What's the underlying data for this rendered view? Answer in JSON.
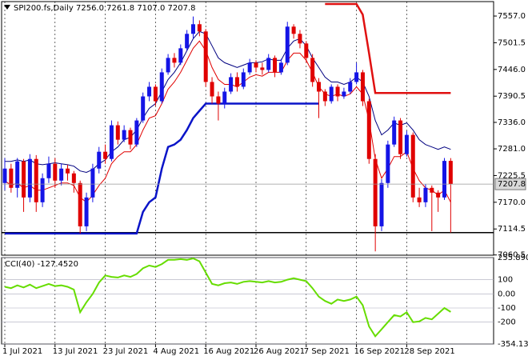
{
  "chart_data": {
    "type": "candlestick",
    "title": "SPI200.fs,Daily  7256.0 7261.8 7107.0 7207.8",
    "categories": [
      "1 Jul 2021",
      null,
      null,
      null,
      null,
      null,
      null,
      null,
      "13 Jul 2021",
      null,
      null,
      null,
      null,
      null,
      null,
      null,
      "23 Jul 2021",
      null,
      null,
      null,
      null,
      null,
      null,
      null,
      "4 Aug 2021",
      null,
      null,
      null,
      null,
      null,
      null,
      null,
      "16 Aug 2021",
      null,
      null,
      null,
      null,
      null,
      null,
      null,
      "26 Aug 2021",
      null,
      null,
      null,
      null,
      null,
      null,
      null,
      "7 Sep 2021",
      null,
      null,
      null,
      null,
      null,
      null,
      null,
      "16 Sep 2021",
      null,
      null,
      null,
      null,
      null,
      null,
      null,
      "28 Sep 2021",
      null,
      null,
      null,
      null,
      null,
      null,
      null
    ],
    "open": [
      7210,
      7240,
      7200,
      7255,
      7180,
      7260,
      7170,
      7220,
      7250,
      7215,
      7240,
      7230,
      7210,
      7120,
      7180,
      7240,
      7275,
      7260,
      7330,
      7300,
      7320,
      7290,
      7340,
      7390,
      7410,
      7380,
      7440,
      7470,
      7460,
      7490,
      7520,
      7540,
      7525,
      7420,
      7390,
      7375,
      7400,
      7430,
      7410,
      7440,
      7460,
      7450,
      7445,
      7470,
      7440,
      7460,
      7535,
      7520,
      7500,
      7470,
      7420,
      7400,
      7380,
      7410,
      7390,
      7400,
      7420,
      7440,
      7380,
      7260,
      7120,
      7210,
      7290,
      7340,
      7270,
      7310,
      7180,
      7170,
      7200,
      7190,
      7180,
      7256
    ],
    "high": [
      7262,
      7250,
      7262,
      7260,
      7270,
      7268,
      7230,
      7265,
      7262,
      7250,
      7248,
      7235,
      7215,
      7190,
      7250,
      7285,
      7290,
      7340,
      7338,
      7330,
      7325,
      7345,
      7398,
      7420,
      7415,
      7448,
      7478,
      7480,
      7498,
      7528,
      7556,
      7548,
      7530,
      7430,
      7400,
      7408,
      7438,
      7440,
      7448,
      7468,
      7465,
      7460,
      7478,
      7475,
      7468,
      7545,
      7540,
      7528,
      7505,
      7478,
      7428,
      7405,
      7415,
      7415,
      7408,
      7428,
      7460,
      7445,
      7385,
      7270,
      7218,
      7298,
      7348,
      7345,
      7318,
      7315,
      7200,
      7208,
      7205,
      7195,
      7262,
      7261.8
    ],
    "low": [
      7195,
      7190,
      7180,
      7150,
      7170,
      7150,
      7160,
      7210,
      7200,
      7205,
      7215,
      7190,
      7105,
      7110,
      7170,
      7230,
      7250,
      7255,
      7290,
      7295,
      7280,
      7285,
      7335,
      7380,
      7370,
      7375,
      7435,
      7450,
      7455,
      7485,
      7510,
      7515,
      7410,
      7375,
      7340,
      7365,
      7395,
      7400,
      7405,
      7435,
      7440,
      7435,
      7440,
      7430,
      7435,
      7455,
      7510,
      7490,
      7460,
      7410,
      7345,
      7370,
      7375,
      7380,
      7385,
      7395,
      7415,
      7370,
      7250,
      7068,
      7110,
      7200,
      7285,
      7260,
      7265,
      7170,
      7160,
      7160,
      7110,
      7150,
      7175,
      7107
    ],
    "close": [
      7240,
      7200,
      7255,
      7180,
      7260,
      7170,
      7220,
      7250,
      7215,
      7240,
      7230,
      7210,
      7120,
      7180,
      7240,
      7275,
      7260,
      7330,
      7300,
      7320,
      7290,
      7340,
      7390,
      7410,
      7380,
      7440,
      7470,
      7460,
      7490,
      7520,
      7540,
      7525,
      7420,
      7390,
      7375,
      7400,
      7430,
      7410,
      7440,
      7460,
      7450,
      7445,
      7470,
      7440,
      7460,
      7535,
      7520,
      7500,
      7470,
      7420,
      7400,
      7380,
      7410,
      7390,
      7400,
      7420,
      7440,
      7380,
      7260,
      7120,
      7210,
      7290,
      7340,
      7270,
      7310,
      7180,
      7170,
      7200,
      7190,
      7180,
      7256,
      7207.8
    ],
    "up_color": "#1414e6",
    "down_color": "#e00000",
    "ylim": [
      7060,
      7587
    ],
    "yticks": [
      {
        "value": 7557,
        "label": "7557.0"
      },
      7501.5,
      {
        "value": 7446,
        "label": "7446.0"
      },
      7390.5,
      {
        "value": 7336,
        "label": "7336.0"
      },
      {
        "value": 7281,
        "label": "7281.0"
      },
      7225.5,
      {
        "value": 7170,
        "label": "7170.0"
      },
      7114.5,
      7060.5
    ],
    "overlays": [
      {
        "color": "#000080",
        "width": 1,
        "values": [
          7255,
          7255,
          7258,
          7255,
          7258,
          7250,
          7248,
          7250,
          7252,
          7250,
          7248,
          7245,
          7235,
          7232,
          7238,
          7250,
          7258,
          7275,
          7285,
          7300,
          7305,
          7320,
          7345,
          7365,
          7375,
          7400,
          7425,
          7440,
          7460,
          7485,
          7510,
          7525,
          7520,
          7495,
          7470,
          7460,
          7455,
          7450,
          7455,
          7460,
          7460,
          7462,
          7468,
          7465,
          7465,
          7490,
          7505,
          7510,
          7495,
          7470,
          7450,
          7430,
          7420,
          7420,
          7415,
          7420,
          7430,
          7420,
          7390,
          7340,
          7310,
          7320,
          7335,
          7330,
          7335,
          7320,
          7300,
          7290,
          7285,
          7280,
          7285,
          7280
        ]
      },
      {
        "color": "#e00000",
        "width": 1,
        "values": [
          7215,
          7205,
          7210,
          7200,
          7205,
          7195,
          7195,
          7200,
          7205,
          7210,
          7210,
          7205,
          7180,
          7170,
          7185,
          7205,
          7220,
          7250,
          7265,
          7275,
          7275,
          7290,
          7320,
          7345,
          7350,
          7375,
          7405,
          7420,
          7440,
          7465,
          7490,
          7505,
          7485,
          7450,
          7425,
          7415,
          7415,
          7410,
          7420,
          7430,
          7435,
          7432,
          7440,
          7440,
          7440,
          7465,
          7480,
          7480,
          7465,
          7440,
          7410,
          7395,
          7390,
          7395,
          7390,
          7395,
          7410,
          7395,
          7340,
          7260,
          7220,
          7240,
          7265,
          7265,
          7275,
          7240,
          7215,
          7200,
          7195,
          7185,
          7195,
          7170
        ]
      },
      {
        "color": "#0a14c8",
        "width": 2.5,
        "values": [
          7105,
          7105,
          7105,
          7105,
          7105,
          7105,
          7105,
          7105,
          7105,
          7105,
          7105,
          7105,
          7105,
          7105,
          7105,
          7105,
          7105,
          7105,
          7105,
          7105,
          7105,
          7105,
          7150,
          7170,
          7180,
          7240,
          7285,
          7290,
          7300,
          7320,
          7345,
          7360,
          7375,
          7375,
          7375,
          7375,
          7375,
          7375,
          7375,
          7375,
          7375,
          7375,
          7375,
          7375,
          7375,
          7375,
          7375,
          7375,
          7375,
          7375,
          7375,
          null,
          null,
          null,
          null,
          null,
          null,
          null,
          null,
          null,
          null,
          null,
          null,
          null,
          null,
          null,
          null,
          null,
          null,
          null,
          null,
          null
        ]
      },
      {
        "color": "#e01010",
        "width": 2.5,
        "values": [
          null,
          null,
          null,
          null,
          null,
          null,
          null,
          null,
          null,
          null,
          null,
          null,
          null,
          null,
          null,
          null,
          null,
          null,
          null,
          null,
          null,
          null,
          null,
          null,
          null,
          null,
          null,
          null,
          null,
          null,
          null,
          null,
          null,
          null,
          null,
          null,
          null,
          null,
          null,
          null,
          null,
          null,
          null,
          null,
          null,
          null,
          null,
          null,
          null,
          null,
          null,
          7582,
          7582,
          7582,
          7582,
          7582,
          7582,
          7560,
          7480,
          7397,
          7397,
          7397,
          7397,
          7397,
          7397,
          7397,
          7397,
          7397,
          7397,
          7397,
          7397,
          7397
        ]
      }
    ],
    "levels": [
      {
        "value": 7107,
        "color": "#000000"
      }
    ],
    "grid": true,
    "cci": {
      "title": "CCI(40) -127.4520",
      "color": "#66dd00",
      "ylim": [
        -354.135,
        255.8902
      ],
      "yticks": [
        255.8902,
        100,
        {
          "value": 0,
          "label": "0.00"
        },
        -100,
        -200,
        -354.135
      ],
      "values": [
        50,
        40,
        60,
        45,
        65,
        40,
        55,
        70,
        55,
        60,
        50,
        30,
        -130,
        -60,
        0,
        80,
        130,
        120,
        115,
        130,
        120,
        140,
        180,
        200,
        190,
        210,
        240,
        240,
        245,
        240,
        250,
        230,
        150,
        70,
        60,
        75,
        80,
        70,
        85,
        90,
        85,
        80,
        90,
        80,
        85,
        100,
        110,
        100,
        90,
        40,
        -20,
        -50,
        -70,
        -40,
        -50,
        -40,
        -20,
        -80,
        -230,
        -300,
        -250,
        -200,
        -150,
        -160,
        -130,
        -200,
        -195,
        -170,
        -180,
        -140,
        -100,
        -127.452
      ]
    }
  }
}
